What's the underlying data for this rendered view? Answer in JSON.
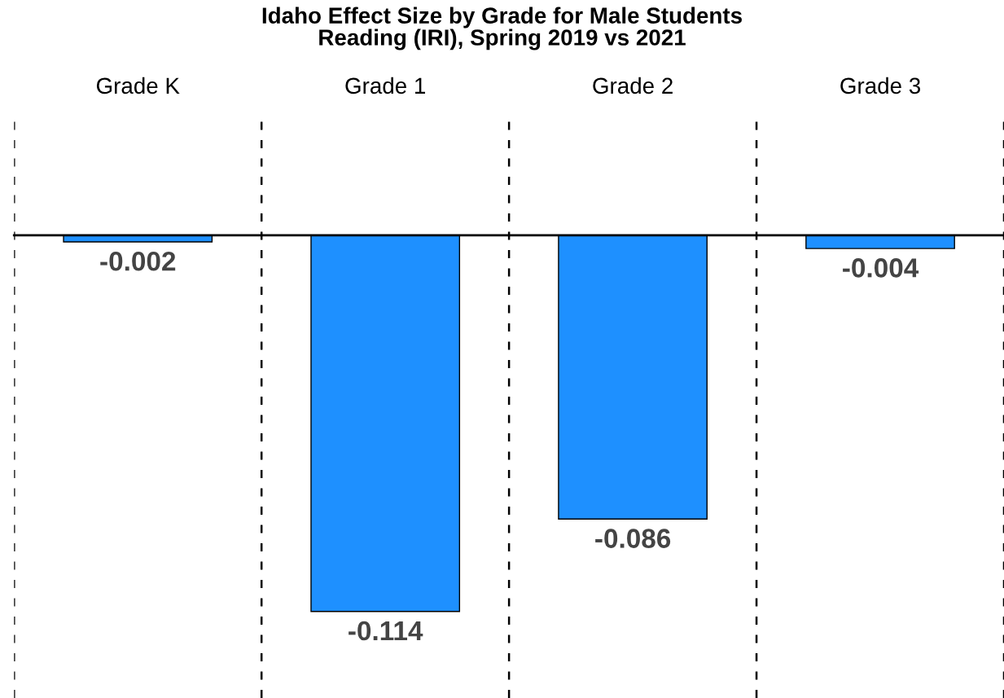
{
  "chart_data": {
    "type": "bar",
    "title": "Idaho Effect Size by Grade for Male Students\nReading (IRI), Spring 2019 vs 2021",
    "categories": [
      "Grade K",
      "Grade 1",
      "Grade 2",
      "Grade 3"
    ],
    "values": [
      -0.002,
      -0.114,
      -0.086,
      -0.004
    ],
    "color": "#1e90ff",
    "data_labels": true,
    "grid": "x"
  }
}
